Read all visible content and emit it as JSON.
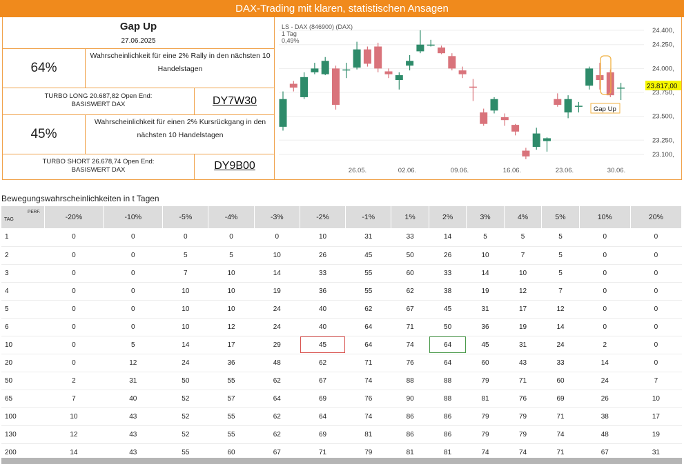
{
  "banner": {
    "title": "DAX-Trading mit klaren, statistischen Ansagen"
  },
  "signal": {
    "title": "Gap Up",
    "date": "27.06.2025",
    "long_pct": "64%",
    "long_text": "Wahrscheinlichkeit für eine 2% Rally in den nächsten 10 Handelstagen",
    "long_turbo": "TURBO LONG 20.687,82 Open End: BASISWERT DAX",
    "long_code": "DY7W30",
    "short_pct": "45%",
    "short_text": "Wahrscheinlichkeit für einen 2% Kursrückgang in den nächsten 10 Handelstagen",
    "short_turbo": "TURBO SHORT 26.678,74 Open End: BASISWERT DAX",
    "short_code": "DY9B00"
  },
  "colors": {
    "accent": "#f08a1c",
    "up": "#2e8b6a",
    "down": "#d9737b",
    "highlight": "#f5f500"
  },
  "chart_data": {
    "type": "candlestick",
    "header": [
      "LS - DAX (846900) (DAX)",
      "1 Tag",
      "0,49%"
    ],
    "x_ticks": [
      "26.05.",
      "02.06.",
      "09.06.",
      "16.06.",
      "23.06.",
      "30.06."
    ],
    "y_ticks": [
      "24.400,",
      "24.250,",
      "24.000,",
      "23.750,",
      "23.500,",
      "23.250,",
      "23.100,"
    ],
    "ylim": [
      23050,
      24450
    ],
    "last_price": "23.817,00",
    "annotation": "Gap Up",
    "candles": [
      {
        "o": 23390,
        "c": 23680,
        "h": 23760,
        "l": 23350
      },
      {
        "o": 23840,
        "c": 23800,
        "h": 23870,
        "l": 23760
      },
      {
        "o": 23700,
        "c": 23910,
        "h": 23960,
        "l": 23680
      },
      {
        "o": 23960,
        "c": 24000,
        "h": 24060,
        "l": 23940
      },
      {
        "o": 23940,
        "c": 24080,
        "h": 24120,
        "l": 23930
      },
      {
        "o": 24000,
        "c": 23620,
        "h": 24030,
        "l": 23570
      },
      {
        "o": 23980,
        "c": 23990,
        "h": 24060,
        "l": 23900
      },
      {
        "o": 24010,
        "c": 24200,
        "h": 24280,
        "l": 23990
      },
      {
        "o": 24200,
        "c": 24050,
        "h": 24230,
        "l": 24020
      },
      {
        "o": 24230,
        "c": 24000,
        "h": 24270,
        "l": 23960
      },
      {
        "o": 23970,
        "c": 23940,
        "h": 24000,
        "l": 23900
      },
      {
        "o": 23880,
        "c": 23930,
        "h": 23960,
        "l": 23780
      },
      {
        "o": 24030,
        "c": 24080,
        "h": 24140,
        "l": 23980
      },
      {
        "o": 24180,
        "c": 24250,
        "h": 24400,
        "l": 24160
      },
      {
        "o": 24250,
        "c": 24250,
        "h": 24300,
        "l": 24230
      },
      {
        "o": 24220,
        "c": 24160,
        "h": 24240,
        "l": 24150
      },
      {
        "o": 24130,
        "c": 24000,
        "h": 24160,
        "l": 23980
      },
      {
        "o": 23980,
        "c": 23940,
        "h": 24020,
        "l": 23900
      },
      {
        "o": 23810,
        "c": 23800,
        "h": 23890,
        "l": 23660
      },
      {
        "o": 23540,
        "c": 23420,
        "h": 23580,
        "l": 23400
      },
      {
        "o": 23560,
        "c": 23680,
        "h": 23700,
        "l": 23530
      },
      {
        "o": 23490,
        "c": 23460,
        "h": 23530,
        "l": 23400
      },
      {
        "o": 23410,
        "c": 23340,
        "h": 23420,
        "l": 23300
      },
      {
        "o": 23140,
        "c": 23080,
        "h": 23170,
        "l": 23050
      },
      {
        "o": 23180,
        "c": 23320,
        "h": 23380,
        "l": 23150
      },
      {
        "o": 23240,
        "c": 23270,
        "h": 23280,
        "l": 23130
      },
      {
        "o": 23680,
        "c": 23620,
        "h": 23740,
        "l": 23600
      },
      {
        "o": 23540,
        "c": 23680,
        "h": 23720,
        "l": 23480
      },
      {
        "o": 23600,
        "c": 23610,
        "h": 23650,
        "l": 23540
      },
      {
        "o": 23820,
        "c": 24000,
        "h": 24020,
        "l": 23780
      },
      {
        "o": 23930,
        "c": 23880,
        "h": 24060,
        "l": 23780
      },
      {
        "o": 23960,
        "c": 23720,
        "h": 23990,
        "l": 23700
      },
      {
        "o": 23800,
        "c": 23800,
        "h": 23850,
        "l": 23670
      }
    ]
  },
  "table": {
    "title": "Bewegungswahrscheinlichkeiten in t Tagen",
    "tag_label": "TAG",
    "perf_label": "PERF.",
    "columns": [
      "-20%",
      "-10%",
      "-5%",
      "-4%",
      "-3%",
      "-2%",
      "-1%",
      "1%",
      "2%",
      "3%",
      "4%",
      "5%",
      "10%",
      "20%"
    ],
    "rows": [
      {
        "tag": "1",
        "vals": [
          "0",
          "0",
          "0",
          "0",
          "0",
          "10",
          "31",
          "33",
          "14",
          "5",
          "5",
          "5",
          "0",
          "0"
        ]
      },
      {
        "tag": "2",
        "vals": [
          "0",
          "0",
          "5",
          "5",
          "10",
          "26",
          "45",
          "50",
          "26",
          "10",
          "7",
          "5",
          "0",
          "0"
        ]
      },
      {
        "tag": "3",
        "vals": [
          "0",
          "0",
          "7",
          "10",
          "14",
          "33",
          "55",
          "60",
          "33",
          "14",
          "10",
          "5",
          "0",
          "0"
        ]
      },
      {
        "tag": "4",
        "vals": [
          "0",
          "0",
          "10",
          "10",
          "19",
          "36",
          "55",
          "62",
          "38",
          "19",
          "12",
          "7",
          "0",
          "0"
        ]
      },
      {
        "tag": "5",
        "vals": [
          "0",
          "0",
          "10",
          "10",
          "24",
          "40",
          "62",
          "67",
          "45",
          "31",
          "17",
          "12",
          "0",
          "0"
        ]
      },
      {
        "tag": "6",
        "vals": [
          "0",
          "0",
          "10",
          "12",
          "24",
          "40",
          "64",
          "71",
          "50",
          "36",
          "19",
          "14",
          "0",
          "0"
        ]
      },
      {
        "tag": "10",
        "vals": [
          "0",
          "5",
          "14",
          "17",
          "29",
          "45",
          "64",
          "74",
          "64",
          "45",
          "31",
          "24",
          "2",
          "0"
        ]
      },
      {
        "tag": "20",
        "vals": [
          "0",
          "12",
          "24",
          "36",
          "48",
          "62",
          "71",
          "76",
          "64",
          "60",
          "43",
          "33",
          "14",
          "0"
        ]
      },
      {
        "tag": "50",
        "vals": [
          "2",
          "31",
          "50",
          "55",
          "62",
          "67",
          "74",
          "88",
          "88",
          "79",
          "71",
          "60",
          "24",
          "7"
        ]
      },
      {
        "tag": "65",
        "vals": [
          "7",
          "40",
          "52",
          "57",
          "64",
          "69",
          "76",
          "90",
          "88",
          "81",
          "76",
          "69",
          "26",
          "10"
        ]
      },
      {
        "tag": "100",
        "vals": [
          "10",
          "43",
          "52",
          "55",
          "62",
          "64",
          "74",
          "86",
          "86",
          "79",
          "79",
          "71",
          "38",
          "17"
        ]
      },
      {
        "tag": "130",
        "vals": [
          "12",
          "43",
          "52",
          "55",
          "62",
          "69",
          "81",
          "86",
          "86",
          "79",
          "79",
          "74",
          "48",
          "19"
        ]
      },
      {
        "tag": "200",
        "vals": [
          "14",
          "43",
          "55",
          "60",
          "67",
          "71",
          "79",
          "81",
          "81",
          "74",
          "74",
          "71",
          "67",
          "31"
        ]
      }
    ]
  }
}
